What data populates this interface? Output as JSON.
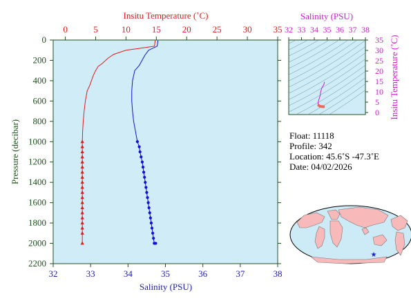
{
  "chart_data": [
    {
      "type": "line",
      "xlabel_top": "Insitu Temperature (˚C)",
      "xlabel_bottom": "Salinity (PSU)",
      "ylabel": "Pressure (decibar)",
      "temp_ticks": [
        "0",
        "5",
        "10",
        "15",
        "20",
        "25",
        "30",
        "35"
      ],
      "sal_ticks": [
        "32",
        "33",
        "34",
        "35",
        "36",
        "37",
        "38"
      ],
      "pres_ticks": [
        "0",
        "200",
        "400",
        "600",
        "800",
        "1000",
        "1200",
        "1400",
        "1600",
        "1800",
        "2000",
        "2200"
      ],
      "xlim_temp": [
        -2,
        35
      ],
      "xlim_sal": [
        32,
        38
      ],
      "ylim_pressure": [
        0,
        2200
      ],
      "series": [
        {
          "name": "Insitu Temperature",
          "color": "#e11a1a",
          "x": [
            14.8,
            14.7,
            12.5,
            10.0,
            8.0,
            7.0,
            6.1,
            5.4,
            5.0,
            4.6,
            4.3,
            4.0,
            3.6,
            3.3,
            3.1,
            2.95,
            2.85,
            2.8,
            2.8,
            2.8,
            2.8,
            2.8,
            2.8,
            2.8,
            2.8,
            2.8,
            2.8,
            2.8,
            2.8,
            2.8,
            2.8,
            2.8,
            2.8,
            2.8,
            2.8,
            2.8,
            2.8
          ],
          "y": [
            5,
            60,
            80,
            100,
            140,
            180,
            230,
            260,
            300,
            350,
            400,
            450,
            500,
            600,
            700,
            800,
            900,
            1000,
            1050,
            1100,
            1150,
            1200,
            1250,
            1300,
            1350,
            1400,
            1450,
            1500,
            1550,
            1600,
            1650,
            1700,
            1750,
            1800,
            1850,
            1900,
            2000
          ]
        },
        {
          "name": "Salinity",
          "color": "#1010d8",
          "x": [
            34.8,
            34.78,
            34.55,
            34.45,
            34.3,
            34.18,
            34.15,
            34.12,
            34.1,
            34.1,
            34.12,
            34.15,
            34.2,
            34.25,
            34.3,
            34.32,
            34.35,
            34.38,
            34.4,
            34.42,
            34.44,
            34.46,
            34.48,
            34.5,
            34.52,
            34.54,
            34.56,
            34.58,
            34.6,
            34.62,
            34.64,
            34.66,
            34.68,
            34.7,
            34.72,
            34.74
          ],
          "y": [
            5,
            60,
            100,
            150,
            250,
            300,
            350,
            400,
            500,
            600,
            700,
            800,
            900,
            1000,
            1050,
            1100,
            1150,
            1200,
            1250,
            1300,
            1350,
            1400,
            1450,
            1500,
            1550,
            1600,
            1650,
            1700,
            1750,
            1800,
            1850,
            1900,
            1950,
            2000,
            2000,
            2000
          ]
        }
      ]
    },
    {
      "type": "scatter",
      "xlabel": "Salinity (PSU)",
      "ylabel": "Insitu Temperature (˚C)",
      "x_ticks": [
        "32",
        "33",
        "34",
        "35",
        "36",
        "37",
        "38"
      ],
      "y_ticks": [
        "0",
        "5",
        "10",
        "15",
        "20",
        "25",
        "30",
        "35"
      ],
      "xlim": [
        32,
        38
      ],
      "ylim": [
        -1,
        35
      ],
      "series": [
        {
          "name": "T-S",
          "color": "#d21ad2",
          "x": [
            34.8,
            34.75,
            34.6,
            34.5,
            34.45,
            34.4,
            34.35,
            34.3,
            34.3,
            34.35,
            34.45,
            34.55,
            34.65,
            34.72
          ],
          "y": [
            14.8,
            13.5,
            12.0,
            10.0,
            8.0,
            7.0,
            6.0,
            5.0,
            4.2,
            3.4,
            3.0,
            2.9,
            2.85,
            2.8
          ]
        }
      ]
    }
  ],
  "info": {
    "float": "Float:  11118",
    "profile": "Profile:  342",
    "location": "Location:  45.6˚S  -47.3˚E",
    "date": "Date:  04/02/2026"
  },
  "map": {
    "marker_lat": -45.6,
    "marker_lon": -47.3,
    "marker_color": "#1a1ad8",
    "ocean_color": "#cdebf7",
    "land_color": "#f7b9b9"
  },
  "colors": {
    "plot_bg": "#d0ecf7",
    "frame": "#1d4f1d",
    "temperature": "#e11a1a",
    "salinity": "#1010d8",
    "ts_curve": "#d21ad2"
  }
}
